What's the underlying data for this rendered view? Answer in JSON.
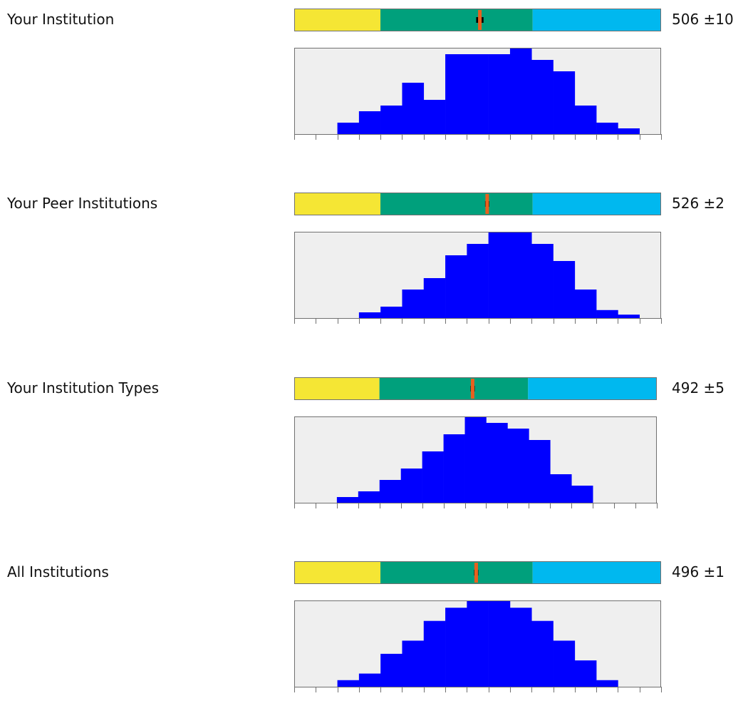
{
  "colors": {
    "band_low": "#f5e634",
    "band_mid": "#00a07c",
    "band_high": "#00b8ef",
    "histogram_bars": "#0000ff",
    "histogram_bg": "#efefef",
    "mean_marker": "#e8601e",
    "interval_marker": "#000000",
    "frame": "#707070"
  },
  "chart_data": [
    {
      "type": "bar",
      "label": "Your Institution",
      "score_text": "506 ±10",
      "score": 506,
      "error": 10,
      "band_scale": [
        0,
        1000
      ],
      "bands": [
        {
          "name": "low",
          "from": 0,
          "to": 235
        },
        {
          "name": "mid",
          "from": 235,
          "to": 650
        },
        {
          "name": "high",
          "from": 650,
          "to": 1000
        }
      ],
      "bin_count": 17,
      "values": [
        0,
        0,
        1,
        2,
        2.5,
        4.5,
        3,
        7,
        7,
        7,
        7.5,
        6.5,
        5.5,
        2.5,
        1,
        0.5,
        0
      ],
      "ylim": [
        0,
        7.5
      ]
    },
    {
      "type": "bar",
      "label": "Your Peer Institutions",
      "score_text": "526 ±2",
      "score": 526,
      "error": 2,
      "band_scale": [
        0,
        1000
      ],
      "bands": [
        {
          "name": "low",
          "from": 0,
          "to": 235
        },
        {
          "name": "mid",
          "from": 235,
          "to": 650
        },
        {
          "name": "high",
          "from": 650,
          "to": 1000
        }
      ],
      "bin_count": 17,
      "values": [
        0,
        0,
        0,
        0.5,
        1,
        2.5,
        3.5,
        5.5,
        6.5,
        7.5,
        7.5,
        6.5,
        5,
        2.5,
        0.7,
        0.3,
        0
      ],
      "ylim": [
        0,
        7.5
      ]
    },
    {
      "type": "bar",
      "label": "Your Institution Types",
      "score_text": "492 ±5",
      "score": 492,
      "error": 5,
      "band_scale": [
        0,
        1000
      ],
      "bands": [
        {
          "name": "low",
          "from": 0,
          "to": 235
        },
        {
          "name": "mid",
          "from": 235,
          "to": 645
        },
        {
          "name": "high",
          "from": 645,
          "to": 1000
        }
      ],
      "bin_count": 17,
      "values": [
        0,
        0,
        0.5,
        1,
        2,
        3,
        4.5,
        6,
        7.5,
        7,
        6.5,
        5.5,
        2.5,
        1.5,
        0,
        0,
        0
      ],
      "ylim": [
        0,
        7.5
      ]
    },
    {
      "type": "bar",
      "label": "All Institutions",
      "score_text": "496 ±1",
      "score": 496,
      "error": 1,
      "band_scale": [
        0,
        1000
      ],
      "bands": [
        {
          "name": "low",
          "from": 0,
          "to": 235
        },
        {
          "name": "mid",
          "from": 235,
          "to": 650
        },
        {
          "name": "high",
          "from": 650,
          "to": 1000
        }
      ],
      "bin_count": 17,
      "values": [
        0,
        0,
        0.5,
        1,
        2.5,
        3.5,
        5,
        6,
        6.5,
        6.5,
        6,
        5,
        3.5,
        2,
        0.5,
        0,
        0
      ],
      "ylim": [
        0,
        6.5
      ]
    }
  ]
}
